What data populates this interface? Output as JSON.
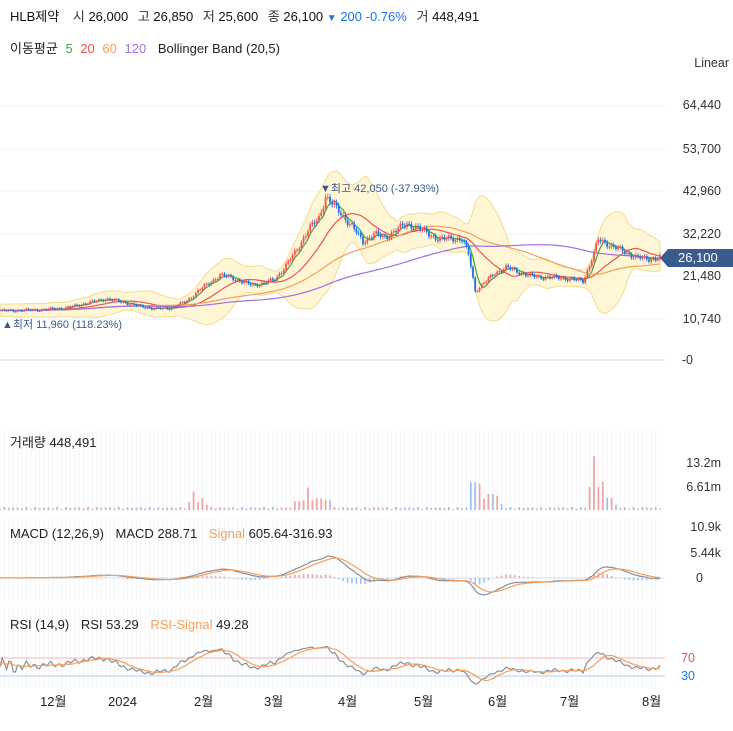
{
  "header": {
    "name": "HLB제약",
    "open_label": "시",
    "open": "26,000",
    "high_label": "고",
    "high": "26,850",
    "low_label": "저",
    "low": "25,600",
    "close_label": "종",
    "close": "26,100",
    "change_arrow": "▼",
    "change": "200",
    "change_pct": "-0.76%",
    "volume_label": "거",
    "volume": "448,491"
  },
  "indicators": {
    "ma_label": "이동평균",
    "ma_periods": [
      "5",
      "20",
      "60",
      "120"
    ],
    "ma_colors": [
      "#3aa845",
      "#ef5350",
      "#f5a05a",
      "#a070e0"
    ],
    "bb_label": "Bollinger Band (20,5)"
  },
  "scale_mode": "Linear",
  "price_axis": [
    "64,440",
    "53,700",
    "42,960",
    "32,220",
    "21,480",
    "10,740",
    "-0"
  ],
  "current_price": "26,100",
  "annotations": {
    "high": "▼최고 42,050 (-37.93%)",
    "low": "▲최저 11,960 (118.23%)"
  },
  "volume_panel": {
    "label": "거래량",
    "value": "448,491",
    "axis": [
      "13.2m",
      "6.61m"
    ]
  },
  "macd_panel": {
    "label": "MACD (12,26,9)",
    "macd_label": "MACD",
    "macd_value": "288.71",
    "signal_label": "Signal",
    "signal_value": "605.64",
    "hist_value": "-316.93",
    "axis": [
      "10.9k",
      "5.44k",
      "0"
    ]
  },
  "rsi_panel": {
    "label": "RSI (14,9)",
    "rsi_label": "RSI",
    "rsi_value": "53.29",
    "signal_label": "RSI-Signal",
    "signal_value": "49.28",
    "axis": [
      "70",
      "30"
    ]
  },
  "time_axis": [
    "12월",
    "2024",
    "2월",
    "3월",
    "4월",
    "5월",
    "6월",
    "7월",
    "8월"
  ],
  "chart_data": {
    "type": "candlestick",
    "x_months": [
      "12월",
      "2024",
      "2월",
      "3월",
      "4월",
      "5월",
      "6월",
      "7월",
      "8월"
    ],
    "price_ylim": [
      0,
      64440
    ],
    "close_path": [
      [
        0,
        12500
      ],
      [
        10,
        12600
      ],
      [
        20,
        12800
      ],
      [
        30,
        13200
      ],
      [
        40,
        14500
      ],
      [
        48,
        15500
      ],
      [
        55,
        14800
      ],
      [
        62,
        13800
      ],
      [
        70,
        13000
      ],
      [
        78,
        13200
      ],
      [
        85,
        15000
      ],
      [
        90,
        17500
      ],
      [
        95,
        19500
      ],
      [
        100,
        21500
      ],
      [
        105,
        21000
      ],
      [
        110,
        19800
      ],
      [
        115,
        19000
      ],
      [
        120,
        19500
      ],
      [
        125,
        20500
      ],
      [
        130,
        24000
      ],
      [
        135,
        28000
      ],
      [
        140,
        33000
      ],
      [
        145,
        36000
      ],
      [
        148,
        41500
      ],
      [
        152,
        39000
      ],
      [
        156,
        36500
      ],
      [
        160,
        34000
      ],
      [
        165,
        30000
      ],
      [
        170,
        32000
      ],
      [
        175,
        31000
      ],
      [
        180,
        33000
      ],
      [
        185,
        34500
      ],
      [
        190,
        33500
      ],
      [
        195,
        32000
      ],
      [
        200,
        30500
      ],
      [
        205,
        31000
      ],
      [
        210,
        30500
      ],
      [
        213,
        27000
      ],
      [
        216,
        17500
      ],
      [
        220,
        19500
      ],
      [
        225,
        22000
      ],
      [
        230,
        23500
      ],
      [
        235,
        22500
      ],
      [
        240,
        21500
      ],
      [
        245,
        21000
      ],
      [
        250,
        21000
      ],
      [
        255,
        20800
      ],
      [
        260,
        20500
      ],
      [
        265,
        20000
      ],
      [
        268,
        24000
      ],
      [
        272,
        30500
      ],
      [
        276,
        29500
      ],
      [
        280,
        28500
      ],
      [
        285,
        27000
      ],
      [
        290,
        26000
      ],
      [
        295,
        25500
      ],
      [
        300,
        26100
      ]
    ],
    "ma5_color": "#3aa845",
    "ma20_color": "#ef5350",
    "ma60_color": "#f5a05a",
    "ma120_color": "#a070e0",
    "volume_spikes": [
      [
        88,
        4.5
      ],
      [
        92,
        3.0
      ],
      [
        135,
        3.0
      ],
      [
        140,
        5.5
      ],
      [
        145,
        4.0
      ],
      [
        149,
        3.5
      ],
      [
        215,
        9.5
      ],
      [
        218,
        6.5
      ],
      [
        223,
        5.5
      ],
      [
        226,
        3.5
      ],
      [
        270,
        13.2
      ],
      [
        274,
        7.0
      ],
      [
        278,
        3.0
      ]
    ],
    "volume_ylim": [
      0,
      14
    ],
    "rsi_levels": [
      70,
      30
    ]
  }
}
